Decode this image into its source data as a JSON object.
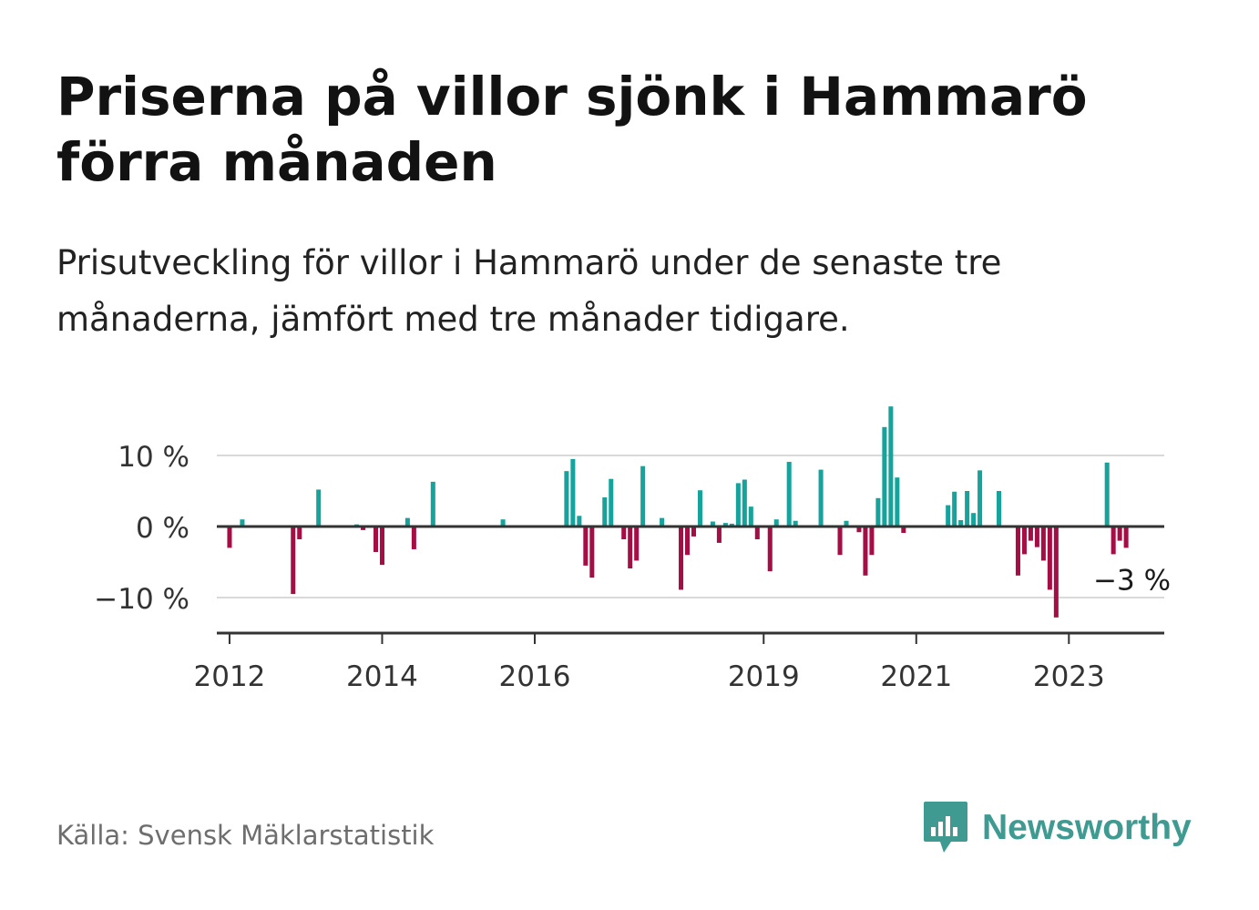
{
  "title": "Priserna på villor sjönk i Hammarö förra månaden",
  "subtitle": "Prisutveckling för villor i Hammarö under de senaste tre månaderna, jämfört med tre månader tidigare.",
  "source": "Källa: Svensk Mäklarstatistik",
  "brand": {
    "name": "Newsworthy",
    "icon": "newsworthy-bar-chart-icon",
    "color": "#3f9b92"
  },
  "colors": {
    "positive": "#16a39c",
    "negative": "#a50d45",
    "axis": "#333333",
    "grid": "#d9d9d9"
  },
  "chart_data": {
    "type": "bar",
    "x_start": "2011-11",
    "x_end": "2024-04",
    "y_ticks": [
      {
        "value": 10,
        "label": "10 %"
      },
      {
        "value": 0,
        "label": "0 %"
      },
      {
        "value": -10,
        "label": "−10 %"
      }
    ],
    "x_ticks": [
      {
        "value": "2012-01",
        "label": "2012"
      },
      {
        "value": "2014-01",
        "label": "2014"
      },
      {
        "value": "2016-01",
        "label": "2016"
      },
      {
        "value": "2019-01",
        "label": "2019"
      },
      {
        "value": "2021-01",
        "label": "2021"
      },
      {
        "value": "2023-01",
        "label": "2023"
      }
    ],
    "ylim": [
      -15,
      17
    ],
    "grid": true,
    "annotation": {
      "x": "2023-11",
      "value": -3,
      "label": "−3 %"
    },
    "points": [
      [
        "2012-01",
        -3
      ],
      [
        "2012-03",
        1
      ],
      [
        "2012-11",
        -9.5
      ],
      [
        "2012-12",
        -1.8
      ],
      [
        "2013-03",
        5.2
      ],
      [
        "2013-09",
        0.3
      ],
      [
        "2013-10",
        -0.5
      ],
      [
        "2013-12",
        -3.6
      ],
      [
        "2014-01",
        -5.4
      ],
      [
        "2014-05",
        1.2
      ],
      [
        "2014-06",
        -3.2
      ],
      [
        "2014-09",
        6.3
      ],
      [
        "2015-08",
        1
      ],
      [
        "2016-06",
        7.8
      ],
      [
        "2016-07",
        9.5
      ],
      [
        "2016-08",
        1.5
      ],
      [
        "2016-09",
        -5.5
      ],
      [
        "2016-10",
        -7.2
      ],
      [
        "2016-12",
        4.1
      ],
      [
        "2017-01",
        6.7
      ],
      [
        "2017-03",
        -1.8
      ],
      [
        "2017-04",
        -5.9
      ],
      [
        "2017-05",
        -4.8
      ],
      [
        "2017-06",
        8.5
      ],
      [
        "2017-09",
        1.2
      ],
      [
        "2017-12",
        -8.9
      ],
      [
        "2018-01",
        -4
      ],
      [
        "2018-02",
        -1.4
      ],
      [
        "2018-03",
        5.1
      ],
      [
        "2018-05",
        0.7
      ],
      [
        "2018-06",
        -2.3
      ],
      [
        "2018-07",
        0.5
      ],
      [
        "2018-08",
        0.4
      ],
      [
        "2018-09",
        6.1
      ],
      [
        "2018-10",
        6.6
      ],
      [
        "2018-11",
        2.8
      ],
      [
        "2018-12",
        -1.8
      ],
      [
        "2019-02",
        -6.3
      ],
      [
        "2019-03",
        1
      ],
      [
        "2019-05",
        9.1
      ],
      [
        "2019-06",
        0.8
      ],
      [
        "2019-10",
        8
      ],
      [
        "2020-01",
        -4
      ],
      [
        "2020-02",
        0.8
      ],
      [
        "2020-04",
        -0.8
      ],
      [
        "2020-05",
        -6.9
      ],
      [
        "2020-06",
        -4
      ],
      [
        "2020-07",
        4
      ],
      [
        "2020-08",
        14
      ],
      [
        "2020-09",
        16.9
      ],
      [
        "2020-10",
        6.9
      ],
      [
        "2020-11",
        -0.9
      ],
      [
        "2021-06",
        3
      ],
      [
        "2021-07",
        4.9
      ],
      [
        "2021-08",
        0.9
      ],
      [
        "2021-09",
        5
      ],
      [
        "2021-10",
        1.9
      ],
      [
        "2021-11",
        7.9
      ],
      [
        "2022-02",
        5
      ],
      [
        "2022-05",
        -6.9
      ],
      [
        "2022-06",
        -3.9
      ],
      [
        "2022-07",
        -2
      ],
      [
        "2022-08",
        -2.9
      ],
      [
        "2022-09",
        -4.8
      ],
      [
        "2022-10",
        -8.9
      ],
      [
        "2022-11",
        -12.8
      ],
      [
        "2023-07",
        9
      ],
      [
        "2023-08",
        -3.9
      ],
      [
        "2023-09",
        -2
      ],
      [
        "2023-10",
        -3
      ]
    ]
  }
}
